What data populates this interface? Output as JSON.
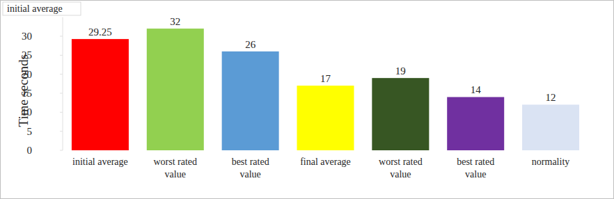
{
  "chart_data": {
    "type": "bar",
    "title": "initial average",
    "y_label": "Time seconds",
    "categories": [
      "initial average",
      "worst rated value",
      "best rated value",
      "final average",
      "worst rated value",
      "best rated value",
      "normality"
    ],
    "values": [
      29.25,
      32,
      26,
      17,
      19,
      14,
      12
    ],
    "colors": [
      "#ff0000",
      "#92d050",
      "#5b9bd5",
      "#ffff00",
      "#375623",
      "#7030a0",
      "#dae3f3"
    ],
    "ylim": [
      0,
      35
    ],
    "yticks": [
      0,
      5,
      10,
      15,
      20,
      25,
      30
    ],
    "grid": false,
    "data_labels": true
  }
}
